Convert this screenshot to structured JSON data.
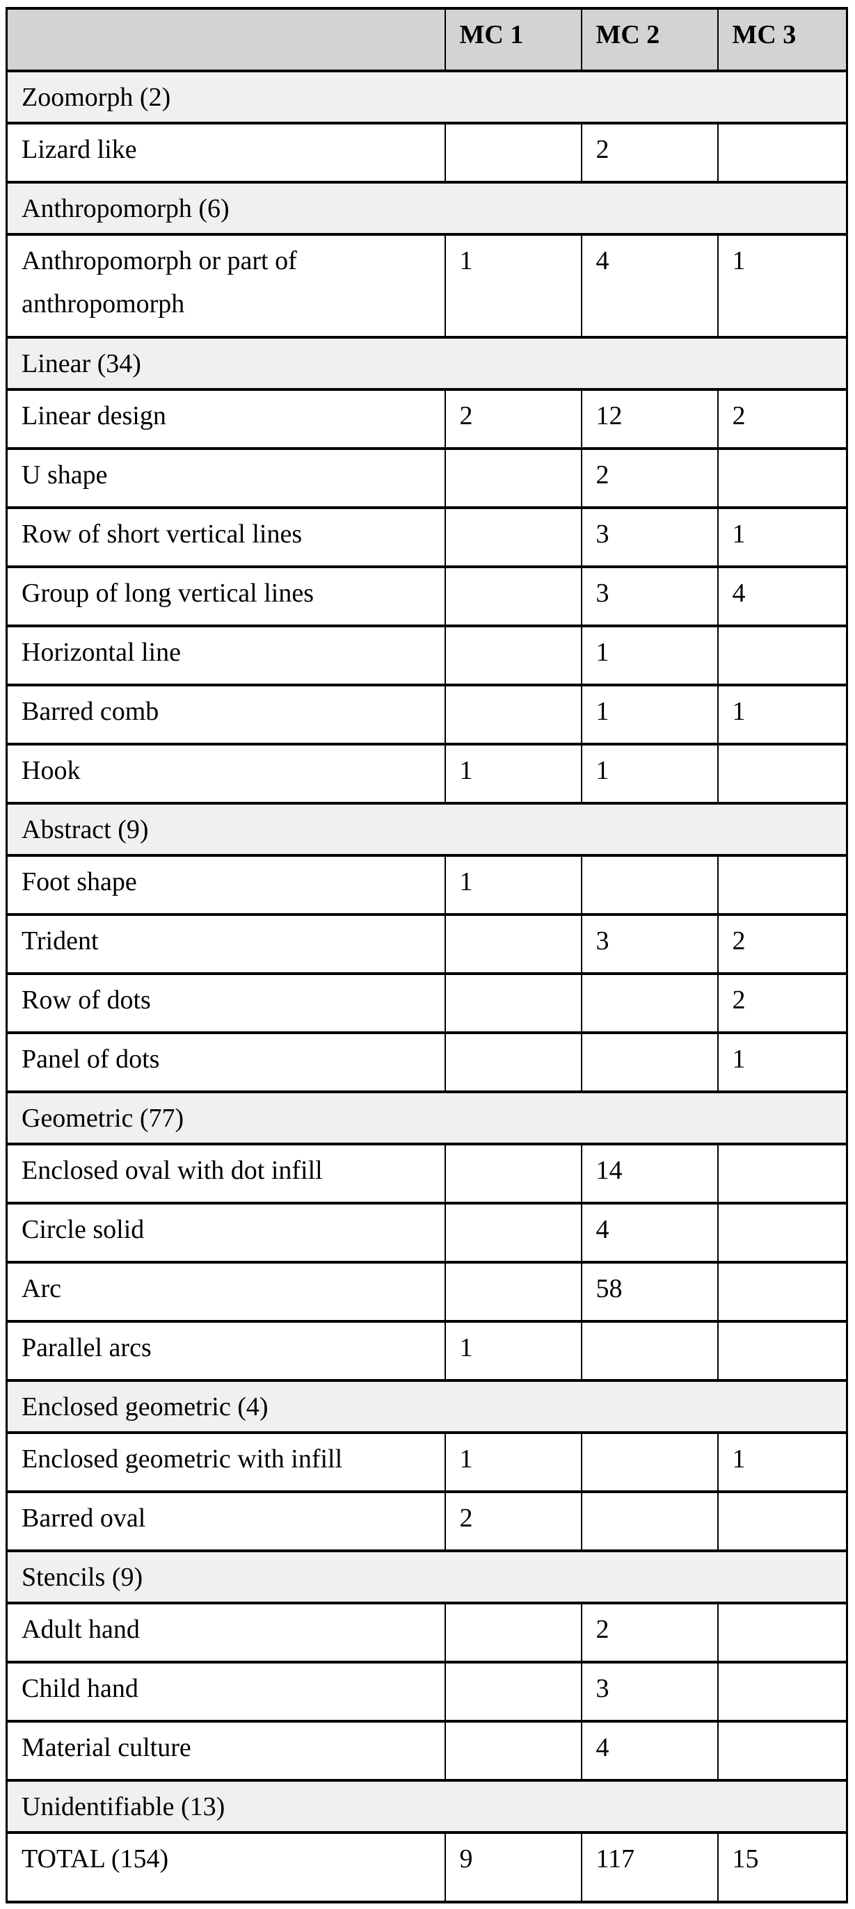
{
  "page": {
    "background": "#ffffff",
    "text_color": "#000000"
  },
  "table": {
    "header_bg": "#d3d3d3",
    "category_bg": "#f0f0f0",
    "border_color": "#000000",
    "columns": [
      "",
      "MC 1",
      "MC 2",
      "MC 3"
    ],
    "rows": [
      {
        "type": "category",
        "label": "Zoomorph (2)"
      },
      {
        "type": "data",
        "label": "Lizard like",
        "mc1": "",
        "mc2": "2",
        "mc3": ""
      },
      {
        "type": "category",
        "label": "Anthropomorph (6)"
      },
      {
        "type": "data",
        "double": true,
        "label": "Anthropomorph or part of\nanthropomorph",
        "mc1": "1",
        "mc2": "4",
        "mc3": "1"
      },
      {
        "type": "category",
        "label": "Linear (34)"
      },
      {
        "type": "data",
        "label": "Linear design",
        "mc1": "2",
        "mc2": "12",
        "mc3": "2"
      },
      {
        "type": "data",
        "label": "U shape",
        "mc1": "",
        "mc2": "2",
        "mc3": ""
      },
      {
        "type": "data",
        "label": "Row of short vertical lines",
        "mc1": "",
        "mc2": "3",
        "mc3": "1"
      },
      {
        "type": "data",
        "label": "Group of long vertical lines",
        "mc1": "",
        "mc2": "3",
        "mc3": "4"
      },
      {
        "type": "data",
        "label": "Horizontal line",
        "mc1": "",
        "mc2": "1",
        "mc3": ""
      },
      {
        "type": "data",
        "label": "Barred comb",
        "mc1": "",
        "mc2": "1",
        "mc3": "1"
      },
      {
        "type": "data",
        "label": "Hook",
        "mc1": "1",
        "mc2": "1",
        "mc3": ""
      },
      {
        "type": "category",
        "label": "Abstract (9)"
      },
      {
        "type": "data",
        "label": "Foot shape",
        "mc1": "1",
        "mc2": "",
        "mc3": ""
      },
      {
        "type": "data",
        "label": "Trident",
        "mc1": "",
        "mc2": "3",
        "mc3": "2"
      },
      {
        "type": "data",
        "label": "Row of dots",
        "mc1": "",
        "mc2": "",
        "mc3": "2"
      },
      {
        "type": "data",
        "label": "Panel of dots",
        "mc1": "",
        "mc2": "",
        "mc3": "1"
      },
      {
        "type": "category",
        "label": "Geometric (77)"
      },
      {
        "type": "data",
        "label": "Enclosed oval with dot infill",
        "mc1": "",
        "mc2": "14",
        "mc3": ""
      },
      {
        "type": "data",
        "label": "Circle solid",
        "mc1": "",
        "mc2": "4",
        "mc3": ""
      },
      {
        "type": "data",
        "label": "Arc",
        "mc1": "",
        "mc2": "58",
        "mc3": ""
      },
      {
        "type": "data",
        "label": "Parallel arcs",
        "mc1": "1",
        "mc2": "",
        "mc3": ""
      },
      {
        "type": "category",
        "label": "Enclosed geometric (4)"
      },
      {
        "type": "data",
        "label": "Enclosed geometric with infill",
        "mc1": "1",
        "mc2": "",
        "mc3": "1"
      },
      {
        "type": "data",
        "label": "Barred oval",
        "mc1": "2",
        "mc2": "",
        "mc3": ""
      },
      {
        "type": "category",
        "label": "Stencils (9)"
      },
      {
        "type": "data",
        "label": "Adult hand",
        "mc1": "",
        "mc2": "2",
        "mc3": ""
      },
      {
        "type": "data",
        "label": "Child hand",
        "mc1": "",
        "mc2": "3",
        "mc3": ""
      },
      {
        "type": "data",
        "label": "Material culture",
        "mc1": "",
        "mc2": "4",
        "mc3": ""
      },
      {
        "type": "category",
        "label": "Unidentifiable (13)"
      },
      {
        "type": "total",
        "label": "TOTAL (154)",
        "mc1": "9",
        "mc2": "117",
        "mc3": "15"
      }
    ]
  }
}
